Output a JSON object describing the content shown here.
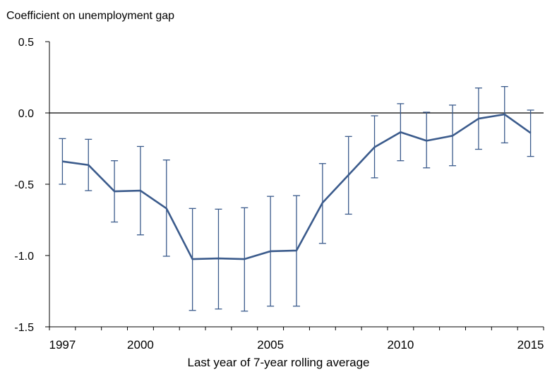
{
  "chart_data": {
    "type": "line",
    "ylabel": "Coefficient on unemployment gap",
    "xlabel": "Last year of 7-year rolling average",
    "x": [
      1997,
      1998,
      1999,
      2000,
      2001,
      2002,
      2003,
      2004,
      2005,
      2006,
      2007,
      2008,
      2009,
      2010,
      2011,
      2012,
      2013,
      2014,
      2015
    ],
    "series": [
      {
        "values": [
          -0.34,
          -0.365,
          -0.55,
          -0.545,
          -0.67,
          -1.025,
          -1.02,
          -1.025,
          -0.97,
          -0.965,
          -0.63,
          -0.435,
          -0.24,
          -0.135,
          -0.195,
          -0.16,
          -0.04,
          -0.01,
          -0.14
        ],
        "lower": [
          -0.5,
          -0.545,
          -0.765,
          -0.855,
          -1.005,
          -1.385,
          -1.375,
          -1.39,
          -1.355,
          -1.355,
          -0.915,
          -0.71,
          -0.455,
          -0.335,
          -0.385,
          -0.37,
          -0.255,
          -0.21,
          -0.305
        ],
        "upper": [
          -0.18,
          -0.185,
          -0.335,
          -0.235,
          -0.33,
          -0.67,
          -0.675,
          -0.665,
          -0.585,
          -0.58,
          -0.355,
          -0.165,
          -0.02,
          0.065,
          0.005,
          0.055,
          0.175,
          0.185,
          0.02
        ]
      }
    ],
    "ylim": [
      -1.5,
      0.5
    ],
    "yticks": [
      0.5,
      0.0,
      -0.5,
      -1.0,
      -1.5
    ],
    "ytick_labels": [
      "0.5",
      "0.0",
      "-0.5",
      "-1.0",
      "-1.5"
    ],
    "xlim": [
      1996.5,
      2015.5
    ],
    "xticks": [
      1997,
      2000,
      2005,
      2010,
      2015
    ],
    "xtick_labels": [
      "1997",
      "2000",
      "2005",
      "2010",
      "2015"
    ],
    "zero_line": true,
    "grid": false,
    "colors": {
      "series": "#3b5b8c",
      "axis": "#000000"
    }
  }
}
